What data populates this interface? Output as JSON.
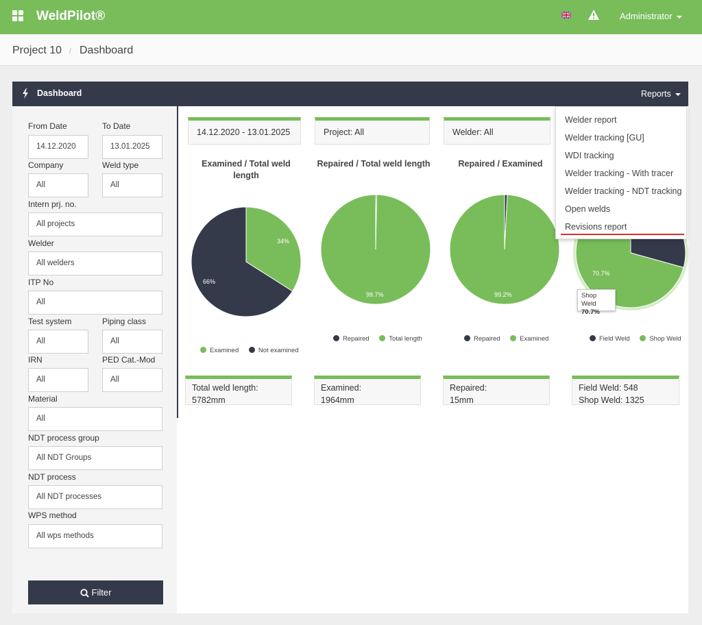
{
  "app": {
    "brand": "WeldPilot®",
    "user": "Administrator"
  },
  "breadcrumb": {
    "project": "Project 10",
    "separator": "/",
    "page": "Dashboard"
  },
  "panel": {
    "title": "Dashboard",
    "reports_label": "Reports"
  },
  "filters": {
    "from_date": {
      "label": "From Date",
      "value": "14.12.2020"
    },
    "to_date": {
      "label": "To Date",
      "value": "13.01.2025"
    },
    "company": {
      "label": "Company",
      "value": "All"
    },
    "weld_type": {
      "label": "Weld type",
      "value": "All"
    },
    "intern_prj": {
      "label": "Intern prj. no.",
      "value": "All projects"
    },
    "welder": {
      "label": "Welder",
      "value": "All welders"
    },
    "itp": {
      "label": "ITP No",
      "value": "All"
    },
    "test_system": {
      "label": "Test system",
      "value": "All"
    },
    "piping_class": {
      "label": "Piping class",
      "value": "All"
    },
    "irn": {
      "label": "IRN",
      "value": "All"
    },
    "ped": {
      "label": "PED Cat.-Mod",
      "value": "All"
    },
    "material": {
      "label": "Material",
      "value": "All"
    },
    "ndt_group": {
      "label": "NDT process group",
      "value": "All NDT Groups"
    },
    "ndt_process": {
      "label": "NDT process",
      "value": "All NDT processes"
    },
    "wps": {
      "label": "WPS method",
      "value": "All wps methods"
    },
    "filter_button": "Filter"
  },
  "header_tiles": {
    "date_range": "14.12.2020 - 13.01.2025",
    "project": "Project: All",
    "welder": "Welder: All"
  },
  "charts": {
    "c1": {
      "title_line1": "Examined / Total weld",
      "title_line2": "length",
      "label_a": "34%",
      "label_b": "66%",
      "legend_a": "Examined",
      "legend_b": "Not examined"
    },
    "c2": {
      "title": "Repaired / Total weld length",
      "label_a": "99.7%",
      "legend_a": "Repaired",
      "legend_b": "Total length"
    },
    "c3": {
      "title": "Repaired / Examined",
      "label_a": "99.2%",
      "legend_a": "Repaired",
      "legend_b": "Examined"
    },
    "c4": {
      "label_a": "70.7%",
      "legend_a": "Field Weld",
      "legend_b": "Shop Weld",
      "tooltip_name": "Shop Weld",
      "tooltip_value": "70.7%"
    }
  },
  "chart_data": [
    {
      "type": "pie",
      "title": "Examined / Total weld length",
      "labels": [
        "Examined",
        "Not examined"
      ],
      "values": [
        34,
        66
      ],
      "colors": [
        "#78bd5a",
        "#343a4a"
      ]
    },
    {
      "type": "pie",
      "title": "Repaired / Total weld length",
      "labels": [
        "Repaired",
        "Total length"
      ],
      "values": [
        0.3,
        99.7
      ],
      "colors": [
        "#343a4a",
        "#78bd5a"
      ]
    },
    {
      "type": "pie",
      "title": "Repaired / Examined",
      "labels": [
        "Repaired",
        "Examined"
      ],
      "values": [
        0.8,
        99.2
      ],
      "colors": [
        "#343a4a",
        "#78bd5a"
      ]
    },
    {
      "type": "pie",
      "title": "",
      "labels": [
        "Field Weld",
        "Shop Weld"
      ],
      "values": [
        29.3,
        70.7
      ],
      "colors": [
        "#343a4a",
        "#78bd5a"
      ]
    }
  ],
  "stats": {
    "s1_line1": "Total weld length:",
    "s1_line2": "5782mm",
    "s2_line1": "Examined:",
    "s2_line2": "1964mm",
    "s3_line1": "Repaired:",
    "s3_line2": "15mm",
    "s4_line1": "Field Weld: 548",
    "s4_line2": "Shop Weld: 1325"
  },
  "reports_menu": [
    "Welder report",
    "Welder tracking [GU]",
    "WDI tracking",
    "Welder tracking - With tracer",
    "Welder tracking - NDT tracking",
    "Open welds",
    "Revisions report"
  ],
  "colors": {
    "accent": "#78bd5a",
    "dark": "#343a4a",
    "highlight": "#d9302a"
  }
}
